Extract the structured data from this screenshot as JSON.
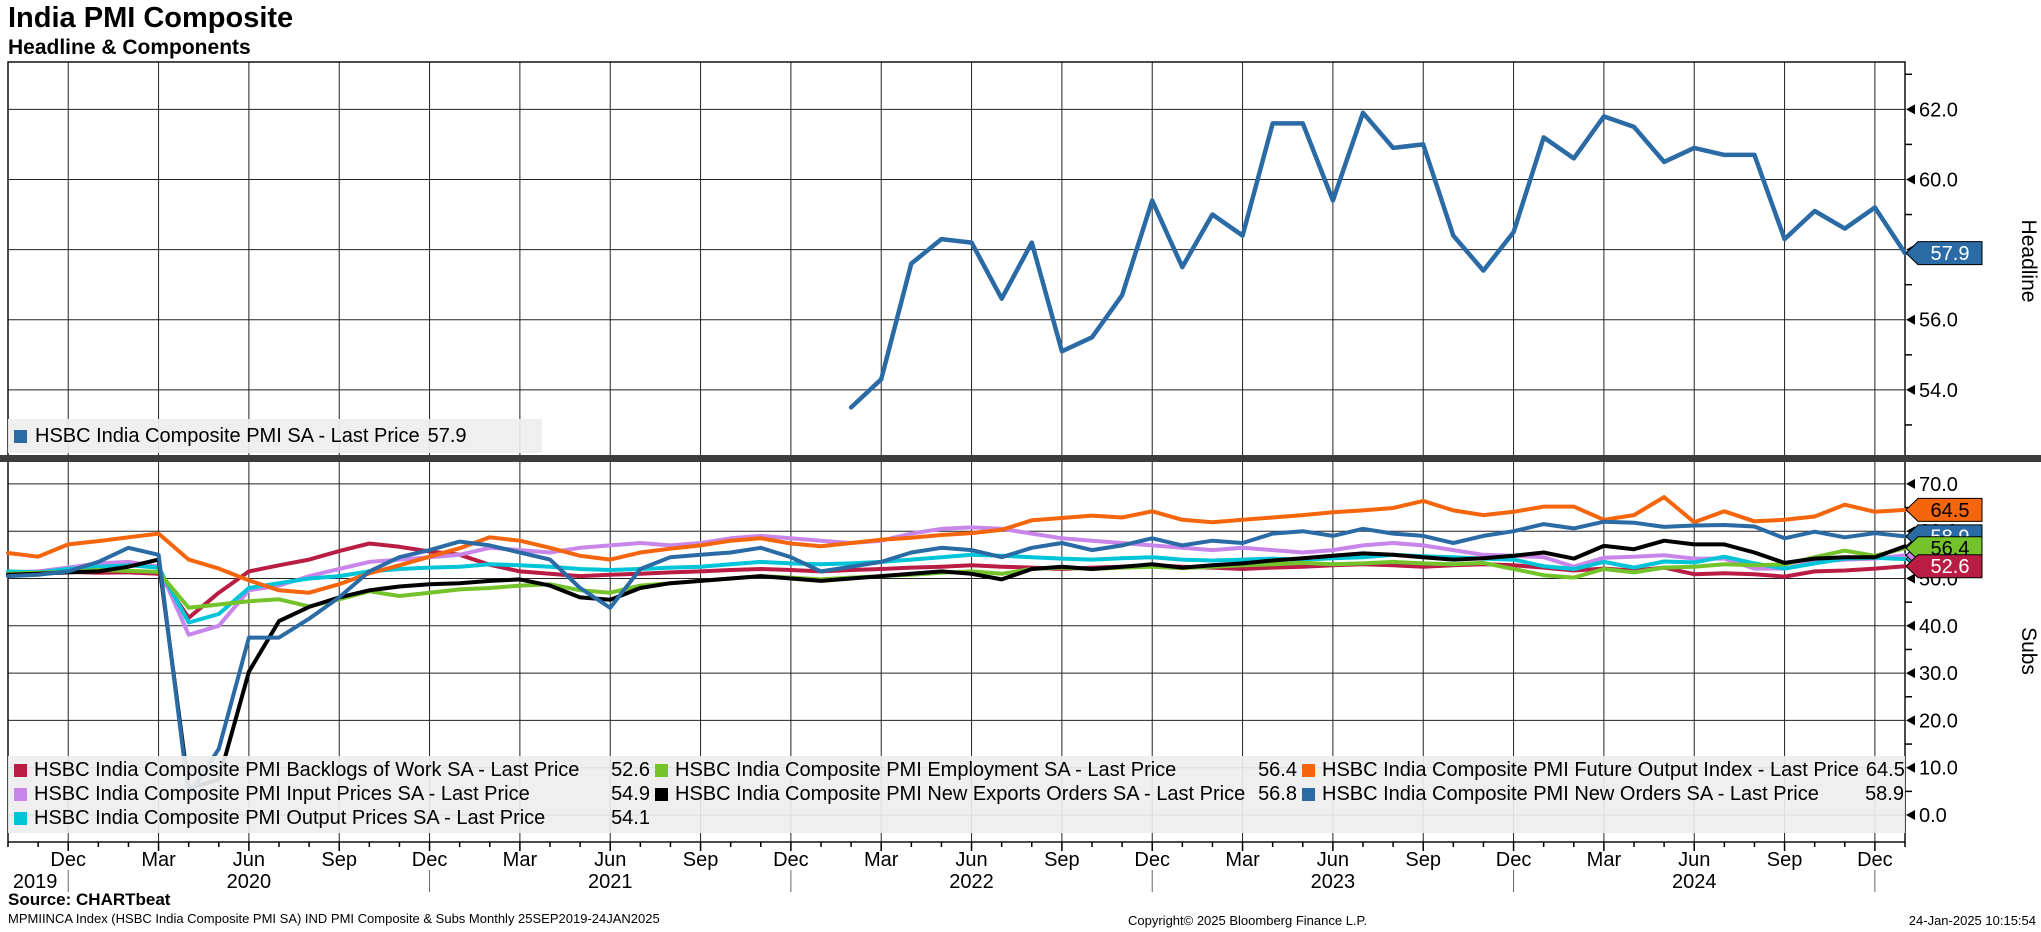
{
  "header": {
    "title": "India PMI Composite",
    "subtitle": "Headline & Components"
  },
  "legend_top": {
    "items": [
      {
        "label": "HSBC India Composite PMI SA - Last Price",
        "value": "57.9",
        "color": "#2a6aa5"
      }
    ]
  },
  "legend_bottom": {
    "columns": [
      {
        "items": [
          {
            "label": "HSBC India Composite PMI Backlogs of Work SA - Last Price",
            "value": "52.6",
            "color": "#b91d44"
          },
          {
            "label": "HSBC India Composite PMI Input Prices SA - Last Price",
            "value": "54.9",
            "color": "#c986ea"
          },
          {
            "label": "HSBC India Composite PMI Output Prices SA - Last Price",
            "value": "54.1",
            "color": "#00c4d8"
          }
        ]
      },
      {
        "items": [
          {
            "label": "HSBC India Composite PMI Employment SA - Last Price",
            "value": "56.4",
            "color": "#74c32b"
          },
          {
            "label": "HSBC India Composite PMI New Exports Orders SA - Last Price",
            "value": "56.8",
            "color": "#000000"
          }
        ]
      },
      {
        "items": [
          {
            "label": "HSBC India Composite PMI Future Output Index - Last Price",
            "value": "64.5",
            "color": "#f4650c"
          },
          {
            "label": "HSBC India Composite PMI New Orders SA - Last Price",
            "value": "58.9",
            "color": "#2a6aa5"
          }
        ]
      }
    ]
  },
  "footer": {
    "source": "Source: CHARTbeat",
    "disclaimer": "MPMIINCA Index (HSBC India Composite PMI SA) IND PMI Composite & Subs  Monthly 25SEP2019-24JAN2025",
    "copyright": "Copyright© 2025 Bloomberg Finance L.P.",
    "datetime": "24-Jan-2025 10:15:54"
  },
  "chart_data": {
    "type": "line",
    "grid": true,
    "months": [
      "Oct-19",
      "Nov-19",
      "Dec-19",
      "Jan-20",
      "Feb-20",
      "Mar-20",
      "Apr-20",
      "May-20",
      "Jun-20",
      "Jul-20",
      "Aug-20",
      "Sep-20",
      "Oct-20",
      "Nov-20",
      "Dec-20",
      "Jan-21",
      "Feb-21",
      "Mar-21",
      "Apr-21",
      "May-21",
      "Jun-21",
      "Jul-21",
      "Aug-21",
      "Sep-21",
      "Oct-21",
      "Nov-21",
      "Dec-21",
      "Jan-22",
      "Feb-22",
      "Mar-22",
      "Apr-22",
      "May-22",
      "Jun-22",
      "Jul-22",
      "Aug-22",
      "Sep-22",
      "Oct-22",
      "Nov-22",
      "Dec-22",
      "Jan-23",
      "Feb-23",
      "Mar-23",
      "Apr-23",
      "May-23",
      "Jun-23",
      "Jul-23",
      "Aug-23",
      "Sep-23",
      "Oct-23",
      "Nov-23",
      "Dec-23",
      "Jan-24",
      "Feb-24",
      "Mar-24",
      "Apr-24",
      "May-24",
      "Jun-24",
      "Jul-24",
      "Aug-24",
      "Sep-24",
      "Oct-24",
      "Nov-24",
      "Dec-24",
      "Jan-25"
    ],
    "x_ticks": [
      {
        "i": 2,
        "label": "Dec"
      },
      {
        "i": 5,
        "label": "Mar"
      },
      {
        "i": 8,
        "label": "Jun"
      },
      {
        "i": 11,
        "label": "Sep"
      },
      {
        "i": 14,
        "label": "Dec"
      },
      {
        "i": 17,
        "label": "Mar"
      },
      {
        "i": 20,
        "label": "Jun"
      },
      {
        "i": 23,
        "label": "Sep"
      },
      {
        "i": 26,
        "label": "Dec"
      },
      {
        "i": 29,
        "label": "Mar"
      },
      {
        "i": 32,
        "label": "Jun"
      },
      {
        "i": 35,
        "label": "Sep"
      },
      {
        "i": 38,
        "label": "Dec"
      },
      {
        "i": 41,
        "label": "Mar"
      },
      {
        "i": 44,
        "label": "Jun"
      },
      {
        "i": 47,
        "label": "Sep"
      },
      {
        "i": 50,
        "label": "Dec"
      },
      {
        "i": 53,
        "label": "Mar"
      },
      {
        "i": 56,
        "label": "Jun"
      },
      {
        "i": 59,
        "label": "Sep"
      },
      {
        "i": 62,
        "label": "Dec"
      }
    ],
    "years": [
      {
        "label": "2019",
        "i": 0.9
      },
      {
        "label": "2020",
        "i": 8
      },
      {
        "label": "2021",
        "i": 20
      },
      {
        "label": "2022",
        "i": 32
      },
      {
        "label": "2023",
        "i": 44
      },
      {
        "label": "2024",
        "i": 56
      }
    ],
    "year_dividers": [
      2,
      14,
      26,
      38,
      50,
      62
    ],
    "panels": [
      {
        "id": "headline",
        "ylabel": "Headline",
        "ylim": [
          52.0,
          63.35
        ],
        "yticks": [
          54,
          56,
          58,
          60,
          62
        ],
        "yminor": [
          53,
          55,
          57,
          59,
          61,
          63
        ],
        "series": [
          {
            "name": "HSBC India Composite PMI SA",
            "color": "#2a6aa5",
            "width": 4.5,
            "values": [
              null,
              null,
              null,
              null,
              null,
              null,
              null,
              null,
              null,
              null,
              null,
              null,
              null,
              null,
              null,
              null,
              null,
              null,
              null,
              null,
              null,
              null,
              null,
              null,
              null,
              null,
              null,
              null,
              53.5,
              54.3,
              57.6,
              58.3,
              58.2,
              56.6,
              58.2,
              55.1,
              55.5,
              56.7,
              59.4,
              57.5,
              59.0,
              58.4,
              61.6,
              61.6,
              59.4,
              61.9,
              60.9,
              61.0,
              58.4,
              57.4,
              58.5,
              61.2,
              60.6,
              61.8,
              61.5,
              60.5,
              60.9,
              60.7,
              60.7,
              58.3,
              59.1,
              58.6,
              59.2,
              57.9
            ]
          }
        ],
        "price_labels": [
          {
            "value": 57.9,
            "text": "57.9",
            "bg": "#2a6aa5",
            "fg": "#ffffff"
          }
        ]
      },
      {
        "id": "subs",
        "ylabel": "Subs",
        "ylim": [
          -5.7,
          75.05
        ],
        "yticks": [
          0,
          10,
          20,
          30,
          40,
          50,
          60,
          70
        ],
        "yminor": [
          5,
          15,
          25,
          35,
          45,
          55,
          65
        ],
        "series": [
          {
            "name": "HSBC India Composite PMI Backlogs of Work SA",
            "color": "#b91d44",
            "width": 4,
            "values": [
              51.3,
              51.2,
              51.4,
              51.2,
              51.3,
              51.0,
              41.7,
              47.0,
              51.5,
              52.8,
              54.0,
              55.8,
              57.4,
              56.7,
              55.7,
              55.0,
              52.9,
              51.5,
              51.0,
              50.5,
              50.8,
              51.0,
              51.3,
              51.5,
              51.8,
              52.0,
              51.8,
              51.5,
              51.8,
              52.0,
              52.3,
              52.5,
              52.8,
              52.5,
              52.3,
              52.0,
              52.3,
              52.5,
              52.8,
              52.5,
              52.3,
              52.0,
              52.3,
              52.5,
              52.8,
              53.0,
              52.8,
              52.5,
              52.8,
              53.0,
              52.8,
              52.3,
              51.7,
              52.1,
              51.7,
              52.3,
              50.9,
              51.1,
              50.9,
              50.4,
              51.5,
              51.7,
              52.1,
              52.6
            ]
          },
          {
            "name": "HSBC India Composite PMI Input Prices SA",
            "color": "#c986ea",
            "width": 4,
            "values": [
              51.3,
              51.5,
              52.3,
              53.2,
              53.5,
              52.5,
              38.1,
              40.0,
              47.5,
              48.5,
              50.5,
              52.0,
              53.5,
              54.0,
              54.5,
              55.0,
              56.5,
              56.0,
              55.5,
              56.5,
              57.0,
              57.5,
              57.0,
              57.5,
              58.5,
              59.0,
              58.5,
              58.0,
              57.5,
              58.0,
              59.5,
              60.5,
              60.8,
              60.5,
              59.5,
              58.5,
              58.0,
              57.5,
              57.0,
              56.5,
              56.0,
              56.5,
              56.0,
              55.5,
              56.0,
              57.0,
              57.5,
              57.0,
              56.0,
              55.0,
              54.8,
              54.5,
              52.5,
              54.4,
              54.6,
              54.9,
              54.2,
              54.2,
              52.1,
              52.1,
              53.5,
              54.0,
              54.2,
              54.9
            ]
          },
          {
            "name": "HSBC India Composite PMI Output Prices SA",
            "color": "#00c4d8",
            "width": 4,
            "values": [
              51.5,
              51.3,
              52.0,
              52.5,
              52.8,
              52.3,
              40.7,
              42.5,
              48.0,
              49.0,
              50.0,
              50.5,
              51.5,
              52.0,
              52.3,
              52.5,
              53.0,
              52.8,
              52.5,
              52.0,
              51.8,
              52.0,
              52.3,
              52.5,
              53.0,
              53.5,
              53.2,
              53.0,
              53.2,
              53.5,
              54.0,
              54.5,
              55.0,
              54.8,
              54.5,
              54.2,
              54.0,
              54.3,
              54.5,
              54.0,
              53.8,
              54.0,
              54.2,
              54.0,
              54.3,
              54.5,
              55.0,
              54.7,
              54.5,
              54.2,
              54.0,
              52.6,
              52.0,
              53.5,
              52.3,
              53.6,
              53.4,
              54.6,
              53.2,
              52.1,
              53.2,
              54.2,
              54.4,
              54.1
            ]
          },
          {
            "name": "HSBC India Composite PMI Employment SA",
            "color": "#74c32b",
            "width": 4,
            "values": [
              51.0,
              51.2,
              51.4,
              51.8,
              51.6,
              51.4,
              43.8,
              44.5,
              45.2,
              45.6,
              44.1,
              45.6,
              47.3,
              46.3,
              47.0,
              47.7,
              48.0,
              48.5,
              48.8,
              47.5,
              47.0,
              48.5,
              49.0,
              49.5,
              50.0,
              50.5,
              50.2,
              49.8,
              50.2,
              50.5,
              50.8,
              51.2,
              51.5,
              51.0,
              52.0,
              52.3,
              52.0,
              52.3,
              52.5,
              52.2,
              52.5,
              52.8,
              53.0,
              53.3,
              53.0,
              53.2,
              53.5,
              53.2,
              53.0,
              53.3,
              52.0,
              50.7,
              50.2,
              52.0,
              51.3,
              52.3,
              52.5,
              53.0,
              52.8,
              53.0,
              54.5,
              55.9,
              54.8,
              56.4
            ]
          },
          {
            "name": "HSBC India Composite PMI New Exports Orders SA",
            "color": "#000000",
            "width": 4,
            "values": [
              50.8,
              51.0,
              51.3,
              51.5,
              52.5,
              54.0,
              5.6,
              7.5,
              30.3,
              41.0,
              44.0,
              46.0,
              47.5,
              48.3,
              48.8,
              49.0,
              49.5,
              49.8,
              48.5,
              46.0,
              45.5,
              48.0,
              49.0,
              49.5,
              50.0,
              50.5,
              50.0,
              49.5,
              50.0,
              50.5,
              51.0,
              51.5,
              51.0,
              49.8,
              52.0,
              52.5,
              52.0,
              52.5,
              53.0,
              52.3,
              52.8,
              53.2,
              53.8,
              54.3,
              54.8,
              55.3,
              55.0,
              54.5,
              54.0,
              54.3,
              54.8,
              55.5,
              54.2,
              56.9,
              56.2,
              58.0,
              57.2,
              57.2,
              55.5,
              53.3,
              54.2,
              54.5,
              54.5,
              56.8
            ]
          },
          {
            "name": "HSBC India Composite PMI Future Output Index",
            "color": "#f4650c",
            "width": 4,
            "values": [
              55.4,
              54.6,
              57.2,
              57.9,
              58.7,
              59.5,
              54.0,
              52.1,
              49.6,
              47.5,
              47.0,
              48.8,
              51.1,
              52.8,
              54.6,
              56.4,
              58.7,
              58.0,
              56.5,
              54.8,
              54.0,
              55.5,
              56.3,
              57.0,
              58.0,
              58.5,
              57.4,
              56.8,
              57.5,
              58.2,
              58.6,
              59.2,
              59.6,
              60.3,
              62.3,
              62.8,
              63.3,
              62.9,
              64.2,
              62.4,
              61.9,
              62.4,
              62.9,
              63.4,
              64.0,
              64.4,
              64.9,
              66.4,
              64.4,
              63.4,
              64.1,
              65.2,
              65.2,
              62.4,
              63.4,
              67.2,
              61.9,
              64.2,
              62.1,
              62.4,
              63.1,
              65.6,
              64.1,
              64.5
            ]
          },
          {
            "name": "HSBC India Composite PMI New Orders SA",
            "color": "#2a6aa5",
            "width": 4,
            "values": [
              50.5,
              50.8,
              51.5,
              53.5,
              56.5,
              55.0,
              4.0,
              14.0,
              37.5,
              37.5,
              41.5,
              46.0,
              51.5,
              54.5,
              56.0,
              57.8,
              57.0,
              55.5,
              54.0,
              48.0,
              43.8,
              52.0,
              54.5,
              55.0,
              55.5,
              56.5,
              54.5,
              51.5,
              52.5,
              53.5,
              55.5,
              56.5,
              56.0,
              54.5,
              56.5,
              57.5,
              56.0,
              57.0,
              58.5,
              57.0,
              58.0,
              57.5,
              59.5,
              60.0,
              59.0,
              60.5,
              59.5,
              59.0,
              57.5,
              59.0,
              60.0,
              61.5,
              60.6,
              62.0,
              61.8,
              60.9,
              61.2,
              61.3,
              61.0,
              58.5,
              59.9,
              58.7,
              59.6,
              58.9
            ]
          }
        ],
        "price_labels": [
          {
            "value": 56.8,
            "text": "56.8",
            "bg": "#000000",
            "fg": "#ffffff"
          },
          {
            "value": 54.1,
            "text": "54.1",
            "bg": "#00c4d8",
            "fg": "#000000"
          },
          {
            "value": 54.9,
            "text": "54.9",
            "bg": "#c986ea",
            "fg": "#000000"
          },
          {
            "value": 58.9,
            "text": "58.9",
            "bg": "#2a6aa5",
            "fg": "#ffffff"
          },
          {
            "value": 56.4,
            "text": "56.4",
            "bg": "#74c32b",
            "fg": "#000000"
          },
          {
            "value": 52.6,
            "text": "52.6",
            "bg": "#b91d44",
            "fg": "#ffffff"
          },
          {
            "value": 64.5,
            "text": "64.5",
            "bg": "#f4650c",
            "fg": "#000000"
          }
        ]
      }
    ]
  }
}
